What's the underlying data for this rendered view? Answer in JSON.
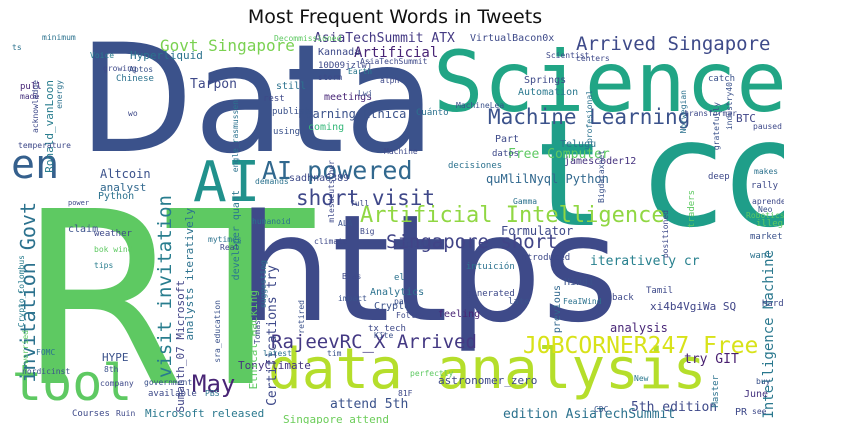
{
  "title": "Most Frequent Words in Tweets",
  "words": [
    {
      "text": "Data",
      "color": "#3b528b"
    },
    {
      "text": "RT",
      "color": "#5ec962"
    },
    {
      "text": "https",
      "color": "#3e4a89"
    },
    {
      "text": "Science",
      "color": "#21a585"
    },
    {
      "text": "t co",
      "color": "#1f9e89"
    },
    {
      "text": "data analysis",
      "color": "#b5de2b"
    },
    {
      "text": "Artificial Intelligence",
      "color": "#90d743"
    },
    {
      "text": "Machine Learning",
      "color": "#3b528b"
    },
    {
      "text": "AI",
      "color": "#21918c"
    },
    {
      "text": "AI powered",
      "color": "#31688e"
    },
    {
      "text": "en",
      "color": "#35608d"
    },
    {
      "text": "tool",
      "color": "#5ec962"
    },
    {
      "text": "Arrived Singapore",
      "color": "#3e4a89"
    },
    {
      "text": "Singapore short",
      "color": "#414487"
    },
    {
      "text": "JOBCORNER247 Free",
      "color": "#d8e219"
    },
    {
      "text": "RajeevRC_X Arrived",
      "color": "#443983"
    },
    {
      "text": "invitation Govt",
      "color": "#2c728e"
    },
    {
      "text": "visit invitation",
      "color": "#287d8e"
    },
    {
      "text": "May",
      "color": "#482475"
    },
    {
      "text": "short visit",
      "color": "#3f4889"
    },
    {
      "text": "Govt Singapore",
      "color": "#7ad151"
    },
    {
      "text": "AsiaTechSummit ATX",
      "color": "#443983"
    },
    {
      "text": "Learning Ethical",
      "color": "#3b528b"
    },
    {
      "text": "Intelligence Machine",
      "color": "#2a788e"
    },
    {
      "text": "Free Computer",
      "color": "#5ec962"
    },
    {
      "text": "Formulator",
      "color": "#3e4989"
    },
    {
      "text": "quMlilNyql Python",
      "color": "#31688e"
    },
    {
      "text": "iteratively cr",
      "color": "#27808e"
    },
    {
      "text": "xi4b4VgiWa SQ",
      "color": "#404688"
    },
    {
      "text": "attend 5th",
      "color": "#3b528b"
    },
    {
      "text": "analysis",
      "color": "#482677"
    },
    {
      "text": "try GIT",
      "color": "#481f70"
    },
    {
      "text": "5th edition",
      "color": "#3e4989"
    },
    {
      "text": "edition AsiaTechSummit",
      "color": "#2c728e"
    },
    {
      "text": "Singapore attend",
      "color": "#6ccd5a"
    },
    {
      "text": "Microsoft released",
      "color": "#2a788e"
    },
    {
      "text": "Certifications try",
      "color": "#3e4989"
    },
    {
      "text": "analysts iteratively",
      "color": "#2c728e"
    },
    {
      "text": "Sumanth_07 Microsoft",
      "color": "#414487"
    },
    {
      "text": "TonyClimate",
      "color": "#46337f"
    },
    {
      "text": "HYPE",
      "color": "#3b528b"
    },
    {
      "text": "Artificial",
      "color": "#482475"
    },
    {
      "text": "Tarpon",
      "color": "#3e4989"
    },
    {
      "text": "Hyperliquid",
      "color": "#2c728e"
    },
    {
      "text": "Ronald_vanLoon",
      "color": "#287d8e"
    },
    {
      "text": "Altcoin",
      "color": "#3b528b"
    },
    {
      "text": "analyst",
      "color": "#31688e"
    },
    {
      "text": "Python",
      "color": "#2c728e"
    },
    {
      "text": "BTC",
      "color": "#404688"
    },
    {
      "text": "jamescoder12",
      "color": "#46337f"
    },
    {
      "text": "sadhna6389",
      "color": "#3e4a89"
    },
    {
      "text": "developer quant",
      "color": "#2a788e"
    },
    {
      "text": "Ethical Hacking",
      "color": "#5ec962"
    },
    {
      "text": "Analytics",
      "color": "#2c728e"
    },
    {
      "text": "Crypto",
      "color": "#3b528b"
    },
    {
      "text": "feeling",
      "color": "#482475"
    },
    {
      "text": "total",
      "color": "#3e4989"
    },
    {
      "text": "coming",
      "color": "#35b779"
    },
    {
      "text": "meetings",
      "color": "#482677"
    },
    {
      "text": "Springs",
      "color": "#3e4a89"
    },
    {
      "text": "Automation",
      "color": "#2a788e"
    },
    {
      "text": "VirtualBacon0x",
      "color": "#3e4a89"
    },
    {
      "text": "minimum",
      "color": "#2c728e"
    },
    {
      "text": "Chinese",
      "color": "#2c728e"
    },
    {
      "text": "growing",
      "color": "#3e4989"
    },
    {
      "text": "Voice",
      "color": "#287d8e"
    },
    {
      "text": "Aptos",
      "color": "#3b528b"
    },
    {
      "text": "pull",
      "color": "#482677"
    },
    {
      "text": "made",
      "color": "#46337f"
    },
    {
      "text": "rest",
      "color": "#3e4989"
    },
    {
      "text": "still",
      "color": "#2c728e"
    },
    {
      "text": "publish",
      "color": "#3b528b"
    },
    {
      "text": "storm",
      "color": "#3e4a89"
    },
    {
      "text": "Earth",
      "color": "#2a788e"
    },
    {
      "text": "alph",
      "color": "#3e4989"
    },
    {
      "text": "Cuánto",
      "color": "#2c728e"
    },
    {
      "text": "decisiones",
      "color": "#2c728e"
    },
    {
      "text": "datos",
      "color": "#3e4989"
    },
    {
      "text": "Part",
      "color": "#3e4a89"
    },
    {
      "text": "claim",
      "color": "#3b528b"
    },
    {
      "text": "weather",
      "color": "#3e4989"
    },
    {
      "text": "tips",
      "color": "#287d8e"
    },
    {
      "text": "worried",
      "color": "#5ec962"
    },
    {
      "text": "FOMC",
      "color": "#2c728e"
    },
    {
      "text": "8th",
      "color": "#3b528b"
    },
    {
      "text": "Courses",
      "color": "#3e4a89"
    },
    {
      "text": "Ruin",
      "color": "#3e4989"
    },
    {
      "text": "available",
      "color": "#3e4a89"
    },
    {
      "text": "government",
      "color": "#3b528b"
    },
    {
      "text": "PBS",
      "color": "#2c728e"
    },
    {
      "text": "81F",
      "color": "#3e4989"
    },
    {
      "text": "perfectly",
      "color": "#5ec962"
    },
    {
      "text": "astronomer_zero",
      "color": "#3e4989"
    },
    {
      "text": "previous",
      "color": "#31688e"
    },
    {
      "text": "late",
      "color": "#3b528b"
    },
    {
      "text": "generated",
      "color": "#3e4989"
    },
    {
      "text": "intuición",
      "color": "#2c728e"
    },
    {
      "text": "back",
      "color": "#3e4989"
    },
    {
      "text": "CDC",
      "color": "#3b528b"
    },
    {
      "text": "New",
      "color": "#2a788e"
    },
    {
      "text": "PR",
      "color": "#3e4989"
    },
    {
      "text": "June",
      "color": "#46337f"
    },
    {
      "text": "buy",
      "color": "#3b528b"
    },
    {
      "text": "Master",
      "color": "#2c728e"
    },
    {
      "text": "see",
      "color": "#3e4989"
    },
    {
      "text": "market",
      "color": "#3b528b"
    },
    {
      "text": "want",
      "color": "#2c728e"
    },
    {
      "text": "illegal",
      "color": "#5ec962"
    },
    {
      "text": "rally",
      "color": "#3e4989"
    },
    {
      "text": "makes",
      "color": "#2c728e"
    },
    {
      "text": "aprende",
      "color": "#3e4989"
    },
    {
      "text": "Neo",
      "color": "#3b528b"
    },
    {
      "text": "paused",
      "color": "#3e4989"
    },
    {
      "text": "catch",
      "color": "#3b528b"
    },
    {
      "text": "centers",
      "color": "#3e4989"
    },
    {
      "text": "Gamma",
      "color": "#2c728e"
    },
    {
      "text": "deep",
      "color": "#3e4989"
    },
    {
      "text": "impact",
      "color": "#3b528b"
    },
    {
      "text": "climate",
      "color": "#3e4989"
    },
    {
      "text": "Big",
      "color": "#3e4989"
    },
    {
      "text": "demands",
      "color": "#2c728e"
    },
    {
      "text": "full",
      "color": "#3e4989"
    },
    {
      "text": "using",
      "color": "#3b528b"
    },
    {
      "text": "humanoid",
      "color": "#2c728e"
    },
    {
      "text": "Follow",
      "color": "#3e4989"
    },
    {
      "text": "tim",
      "color": "#3b528b"
    },
    {
      "text": "latest",
      "color": "#2c728e"
    },
    {
      "text": "company",
      "color": "#3e4989"
    },
    {
      "text": "Machine",
      "color": "#3e4989"
    },
    {
      "text": "Norwegian",
      "color": "#2c728e"
    },
    {
      "text": "Scientist",
      "color": "#3e4989"
    },
    {
      "text": "industry40",
      "color": "#3b528b"
    },
    {
      "text": "temperature",
      "color": "#3e4989"
    },
    {
      "text": "Decommissioned",
      "color": "#5ec962"
    },
    {
      "text": "AsiaTechSummit",
      "color": "#3e4989"
    },
    {
      "text": "Kannada",
      "color": "#3e4a89"
    },
    {
      "text": "Telugu",
      "color": "#2c728e"
    },
    {
      "text": "Hindi",
      "color": "#3b528b"
    },
    {
      "text": "Tamil",
      "color": "#3e4989"
    },
    {
      "text": "mytimes",
      "color": "#2c728e"
    },
    {
      "text": "Real",
      "color": "#3e4989"
    },
    {
      "text": "ALA",
      "color": "#3b528b"
    },
    {
      "text": "tx_tech",
      "color": "#3e4989"
    },
    {
      "text": "retired",
      "color": "#3b528b"
    },
    {
      "text": "suggesting",
      "color": "#2c728e"
    },
    {
      "text": "Tomas",
      "color": "#3e4989"
    },
    {
      "text": "sra_education",
      "color": "#3b528b"
    },
    {
      "text": "Hard",
      "color": "#3e4989"
    },
    {
      "text": "Robotics",
      "color": "#5ec962"
    },
    {
      "text": "traders",
      "color": "#5ec962"
    },
    {
      "text": "positioned",
      "color": "#3e4989"
    },
    {
      "text": "Bigdataxnet",
      "color": "#3b528b"
    },
    {
      "text": "transformar",
      "color": "#3e4989"
    },
    {
      "text": "profesional",
      "color": "#2c728e"
    },
    {
      "text": "gratefully",
      "color": "#3b528b"
    },
    {
      "text": "acknowledge",
      "color": "#3e4989"
    },
    {
      "text": "energy",
      "color": "#2c728e"
    },
    {
      "text": "wo",
      "color": "#3e4989"
    },
    {
      "text": "nordicinst",
      "color": "#3b528b"
    },
    {
      "text": "mlesdeutscher",
      "color": "#3e4989"
    },
    {
      "text": "bok wind",
      "color": "#5ec962"
    },
    {
      "text": "Kite",
      "color": "#3b528b"
    },
    {
      "text": "Crypto_Colombus",
      "color": "#287d8e"
    },
    {
      "text": "10D09jzlwj",
      "color": "#3e4989"
    },
    {
      "text": "introduced",
      "color": "#3e4989"
    },
    {
      "text": "engle_rasmussen",
      "color": "#2c728e"
    },
    {
      "text": "Lwj",
      "color": "#3b528b"
    },
    {
      "text": "FeaIWind",
      "color": "#2c728e"
    },
    {
      "text": "power",
      "color": "#3e4989"
    },
    {
      "text": "ts",
      "color": "#2c728e"
    },
    {
      "text": "MachineLea",
      "color": "#3b528b"
    },
    {
      "text": "Bias",
      "color": "#3e4989"
    },
    {
      "text": "el",
      "color": "#2c728e"
    },
    {
      "text": "pa",
      "color": "#3b528b"
    }
  ]
}
